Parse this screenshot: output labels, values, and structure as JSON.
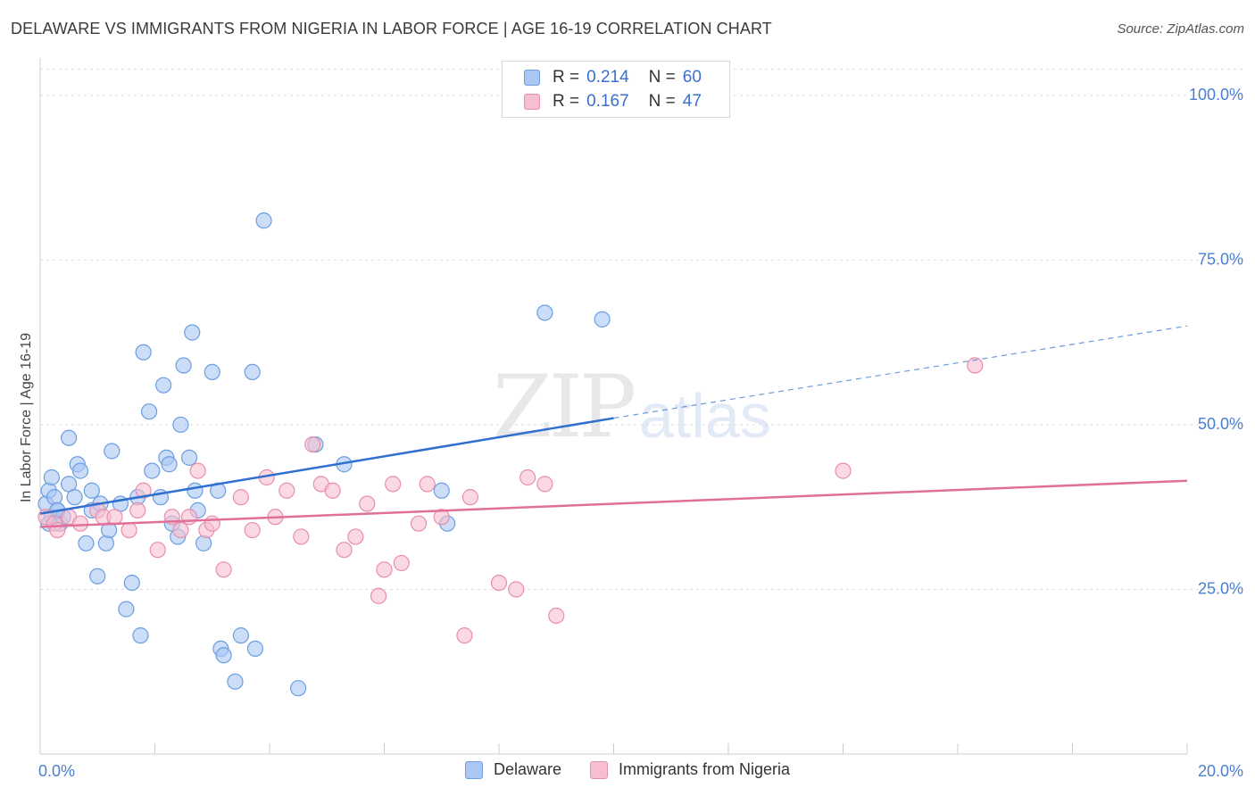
{
  "title": "DELAWARE VS IMMIGRANTS FROM NIGERIA IN LABOR FORCE | AGE 16-19 CORRELATION CHART",
  "source": "Source: ZipAtlas.com",
  "watermark": {
    "zip": "ZIP",
    "atlas": "atlas"
  },
  "colors": {
    "delaware_fill": "#a9c7f2",
    "delaware_stroke": "#6c9ee0",
    "delaware_line": "#2e6fd0",
    "nigeria_fill": "#f6bfd0",
    "nigeria_stroke": "#e88eac",
    "nigeria_line": "#e0709a",
    "axis_text": "#4a7fd0",
    "grid": "#dddddd"
  },
  "legend": {
    "rows": [
      {
        "r_label": "R = ",
        "r_value": "0.214",
        "n_label": "N = ",
        "n_value": "60"
      },
      {
        "r_label": "R = ",
        "r_value": "0.167",
        "n_label": "N = ",
        "n_value": "47"
      }
    ]
  },
  "chart_data": {
    "type": "scatter",
    "title": "DELAWARE VS IMMIGRANTS FROM NIGERIA IN LABOR FORCE | AGE 16-19 CORRELATION CHART",
    "xlabel": "",
    "ylabel": "In Labor Force | Age 16-19",
    "xlim": [
      0,
      20
    ],
    "ylim": [
      0,
      105
    ],
    "x_tick_labels": [
      "0.0%",
      "20.0%"
    ],
    "y_ticks": [
      25,
      50,
      75,
      100
    ],
    "y_tick_labels": [
      "25.0%",
      "50.0%",
      "75.0%",
      "100.0%"
    ],
    "grid": true,
    "legend_position": "bottom",
    "series": [
      {
        "name": "Delaware",
        "points": [
          [
            0.1,
            38
          ],
          [
            0.15,
            40
          ],
          [
            0.2,
            42
          ],
          [
            0.2,
            36
          ],
          [
            0.25,
            39
          ],
          [
            0.3,
            37
          ],
          [
            0.35,
            35
          ],
          [
            0.4,
            36
          ],
          [
            0.5,
            41
          ],
          [
            0.5,
            48
          ],
          [
            0.6,
            39
          ],
          [
            0.65,
            44
          ],
          [
            0.7,
            43
          ],
          [
            0.8,
            32
          ],
          [
            0.9,
            40
          ],
          [
            0.9,
            37
          ],
          [
            1.0,
            27
          ],
          [
            1.05,
            38
          ],
          [
            1.15,
            32
          ],
          [
            1.2,
            34
          ],
          [
            1.25,
            46
          ],
          [
            1.4,
            38
          ],
          [
            1.5,
            22
          ],
          [
            1.6,
            26
          ],
          [
            1.7,
            39
          ],
          [
            1.75,
            18
          ],
          [
            1.8,
            61
          ],
          [
            1.9,
            52
          ],
          [
            1.95,
            43
          ],
          [
            2.1,
            39
          ],
          [
            2.15,
            56
          ],
          [
            2.2,
            45
          ],
          [
            2.25,
            44
          ],
          [
            2.3,
            35
          ],
          [
            2.4,
            33
          ],
          [
            2.45,
            50
          ],
          [
            2.5,
            59
          ],
          [
            2.6,
            45
          ],
          [
            2.65,
            64
          ],
          [
            2.7,
            40
          ],
          [
            2.75,
            37
          ],
          [
            2.85,
            32
          ],
          [
            3.0,
            58
          ],
          [
            3.1,
            40
          ],
          [
            3.15,
            16
          ],
          [
            3.2,
            15
          ],
          [
            3.4,
            11
          ],
          [
            3.5,
            18
          ],
          [
            3.7,
            58
          ],
          [
            3.75,
            16
          ],
          [
            3.9,
            81
          ],
          [
            4.5,
            10
          ],
          [
            4.8,
            47
          ],
          [
            5.3,
            44
          ],
          [
            7.0,
            40
          ],
          [
            7.1,
            35
          ],
          [
            8.8,
            67
          ],
          [
            9.8,
            66
          ],
          [
            0.15,
            35
          ],
          [
            0.3,
            37
          ]
        ]
      },
      {
        "name": "Immigrants from Nigeria",
        "points": [
          [
            0.1,
            36
          ],
          [
            0.25,
            35
          ],
          [
            0.5,
            36
          ],
          [
            0.7,
            35
          ],
          [
            1.0,
            37
          ],
          [
            1.1,
            36
          ],
          [
            1.3,
            36
          ],
          [
            1.55,
            34
          ],
          [
            1.7,
            37
          ],
          [
            1.8,
            40
          ],
          [
            2.05,
            31
          ],
          [
            2.3,
            36
          ],
          [
            2.45,
            34
          ],
          [
            2.6,
            36
          ],
          [
            2.75,
            43
          ],
          [
            2.9,
            34
          ],
          [
            3.0,
            35
          ],
          [
            3.2,
            28
          ],
          [
            3.5,
            39
          ],
          [
            3.7,
            34
          ],
          [
            3.95,
            42
          ],
          [
            4.1,
            36
          ],
          [
            4.3,
            40
          ],
          [
            4.55,
            33
          ],
          [
            4.75,
            47
          ],
          [
            4.9,
            41
          ],
          [
            5.1,
            40
          ],
          [
            5.3,
            31
          ],
          [
            5.5,
            33
          ],
          [
            5.7,
            38
          ],
          [
            5.9,
            24
          ],
          [
            6.0,
            28
          ],
          [
            6.15,
            41
          ],
          [
            6.3,
            29
          ],
          [
            6.6,
            35
          ],
          [
            6.75,
            41
          ],
          [
            7.0,
            36
          ],
          [
            7.4,
            18
          ],
          [
            7.5,
            39
          ],
          [
            8.0,
            26
          ],
          [
            8.3,
            25
          ],
          [
            8.5,
            42
          ],
          [
            8.8,
            41
          ],
          [
            9.0,
            21
          ],
          [
            14.0,
            43
          ],
          [
            16.3,
            59
          ],
          [
            0.3,
            34
          ]
        ]
      }
    ],
    "trendlines": [
      {
        "series": "Delaware",
        "x0": 0,
        "y0": 36.5,
        "x1": 10,
        "y1": 51,
        "dashed_extension_to_x": 20,
        "dashed_extension_y": 65
      },
      {
        "series": "Immigrants from Nigeria",
        "x0": 0,
        "y0": 34.5,
        "x1": 20,
        "y1": 41.5
      }
    ]
  },
  "bottom_legend": {
    "items": [
      {
        "label": "Delaware"
      },
      {
        "label": "Immigrants from Nigeria"
      }
    ]
  }
}
